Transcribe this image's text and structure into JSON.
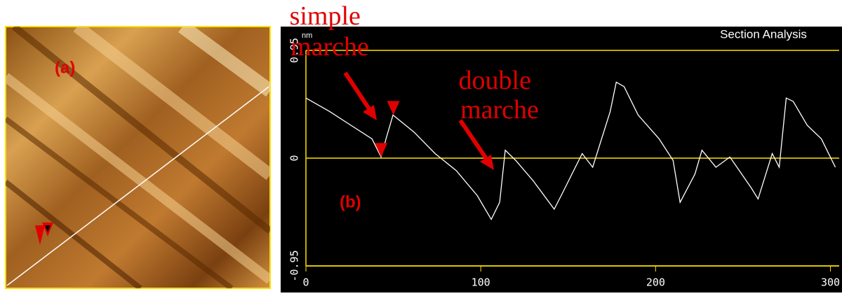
{
  "chart_data": {
    "type": "line",
    "title": "Section Analysis",
    "y_unit": "nm",
    "panel_labels": [
      "(a)",
      "(b)"
    ],
    "annotations": [
      [
        "simple",
        "marche"
      ],
      [
        "double",
        "marche"
      ]
    ],
    "x": [
      0,
      13.7,
      25.7,
      37.8,
      43,
      45.8,
      49.8,
      61.8,
      73.9,
      86,
      98,
      106,
      110.8,
      114,
      120,
      130,
      142,
      146,
      158,
      164,
      174,
      177.5,
      182,
      190,
      202,
      210,
      214,
      222.5,
      226.5,
      234.5,
      242.5,
      254.6,
      258.6,
      266.7,
      270.7,
      274.7,
      278.7,
      286.7,
      294.8,
      302.8
    ],
    "series": [
      {
        "color": "#ffffff",
        "values": [
          0.53,
          0.41,
          0.29,
          0.17,
          0.01,
          0.17,
          0.38,
          0.23,
          0.04,
          -0.11,
          -0.33,
          -0.54,
          -0.39,
          0.07,
          -0.02,
          -0.2,
          -0.45,
          -0.33,
          0.04,
          -0.08,
          0.41,
          0.67,
          0.63,
          0.38,
          0.17,
          -0.02,
          -0.39,
          -0.14,
          0.07,
          -0.08,
          0.01,
          -0.26,
          -0.36,
          0.04,
          -0.08,
          0.53,
          0.5,
          0.29,
          0.17,
          -0.08
        ]
      }
    ],
    "cursors": [
      {
        "x": 43,
        "y": 0.01
      },
      {
        "x": 50,
        "y": 0.38
      }
    ],
    "xlim": [
      0,
      305
    ],
    "xticks": [
      0,
      100,
      200,
      300
    ],
    "ylim": [
      -0.95,
      0.95
    ],
    "yticks": [
      -0.95,
      0,
      0.95
    ],
    "grid": true
  }
}
